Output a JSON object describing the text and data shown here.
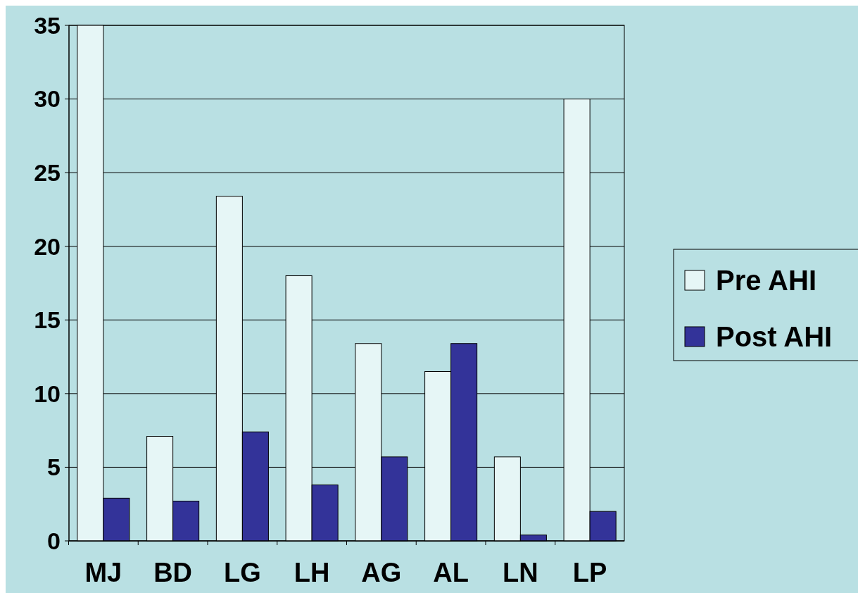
{
  "chart_data": {
    "type": "bar",
    "categories": [
      "MJ",
      "BD",
      "LG",
      "LH",
      "AG",
      "AL",
      "LN",
      "LP"
    ],
    "series": [
      {
        "name": "Pre AHI",
        "color": "#e6f6f6",
        "values": [
          35,
          7.1,
          23.4,
          18,
          13.4,
          11.5,
          5.7,
          30
        ]
      },
      {
        "name": "Post AHI",
        "color": "#333399",
        "values": [
          2.9,
          2.7,
          7.4,
          3.8,
          5.7,
          13.4,
          0.4,
          2
        ]
      }
    ],
    "ylim": [
      0,
      35
    ],
    "yticks": [
      0,
      5,
      10,
      15,
      20,
      25,
      30,
      35
    ],
    "grid": "y",
    "legend": "right"
  }
}
